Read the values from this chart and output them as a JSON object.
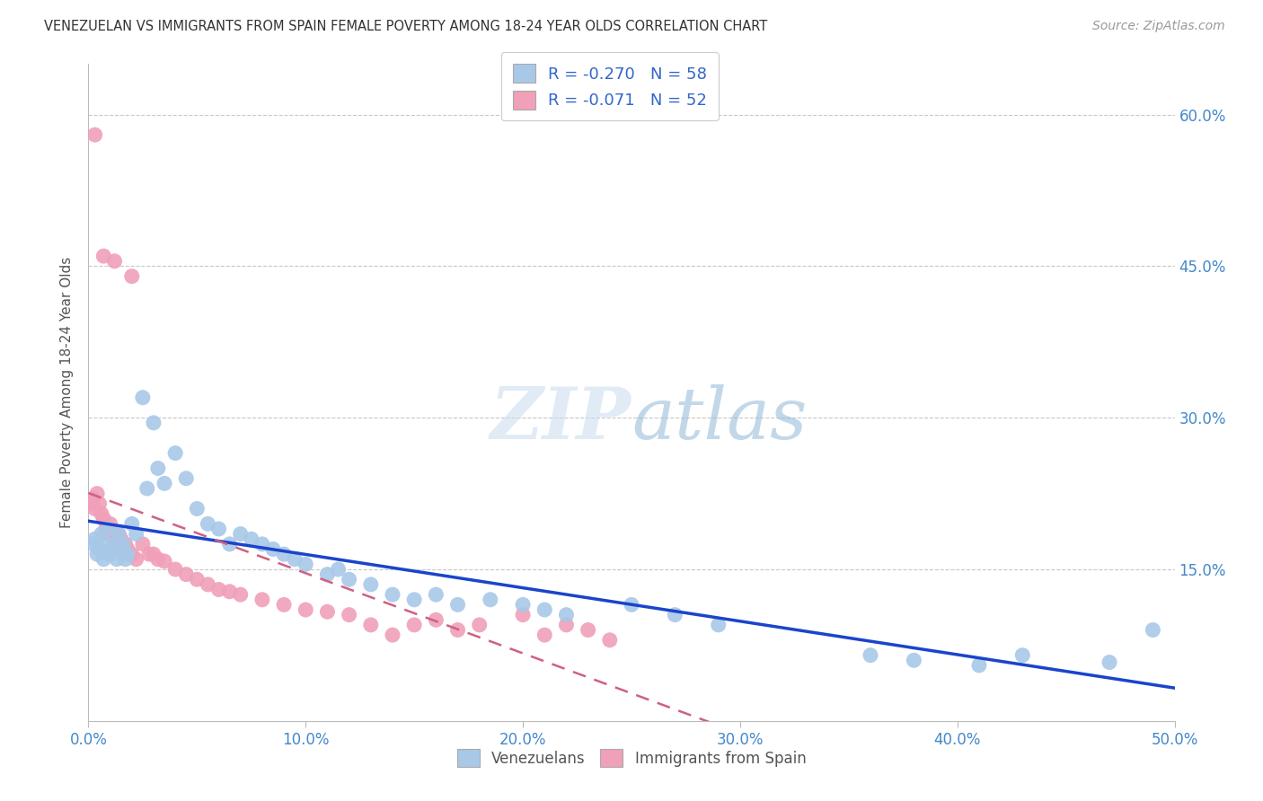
{
  "title": "VENEZUELAN VS IMMIGRANTS FROM SPAIN FEMALE POVERTY AMONG 18-24 YEAR OLDS CORRELATION CHART",
  "source": "Source: ZipAtlas.com",
  "ylabel": "Female Poverty Among 18-24 Year Olds",
  "xlim": [
    0,
    0.5
  ],
  "ylim": [
    0,
    0.65
  ],
  "ytick_positions": [
    0.15,
    0.3,
    0.45,
    0.6
  ],
  "ytick_labels": [
    "15.0%",
    "30.0%",
    "45.0%",
    "60.0%"
  ],
  "xtick_positions": [
    0.0,
    0.1,
    0.2,
    0.3,
    0.4,
    0.5
  ],
  "xtick_labels": [
    "0.0%",
    "10.0%",
    "20.0%",
    "30.0%",
    "40.0%",
    "50.0%"
  ],
  "watermark_zip": "ZIP",
  "watermark_atlas": "atlas",
  "blue_color": "#A8C8E8",
  "pink_color": "#F0A0B8",
  "blue_line_color": "#1A44CC",
  "pink_line_color": "#D06080",
  "legend_text_blue": "R = -0.270   N = 58",
  "legend_text_pink": "R = -0.071   N = 52",
  "venezuelans_x": [
    0.002,
    0.003,
    0.004,
    0.005,
    0.006,
    0.007,
    0.008,
    0.009,
    0.01,
    0.011,
    0.012,
    0.013,
    0.014,
    0.015,
    0.016,
    0.017,
    0.018,
    0.02,
    0.022,
    0.025,
    0.027,
    0.03,
    0.032,
    0.035,
    0.04,
    0.045,
    0.05,
    0.055,
    0.06,
    0.065,
    0.07,
    0.075,
    0.08,
    0.085,
    0.09,
    0.095,
    0.1,
    0.11,
    0.115,
    0.12,
    0.13,
    0.14,
    0.15,
    0.16,
    0.17,
    0.185,
    0.2,
    0.21,
    0.22,
    0.25,
    0.27,
    0.29,
    0.36,
    0.38,
    0.41,
    0.43,
    0.47,
    0.49
  ],
  "venezuelans_y": [
    0.175,
    0.18,
    0.165,
    0.17,
    0.185,
    0.16,
    0.175,
    0.19,
    0.165,
    0.17,
    0.175,
    0.16,
    0.185,
    0.17,
    0.175,
    0.16,
    0.165,
    0.195,
    0.185,
    0.32,
    0.23,
    0.295,
    0.25,
    0.235,
    0.265,
    0.24,
    0.21,
    0.195,
    0.19,
    0.175,
    0.185,
    0.18,
    0.175,
    0.17,
    0.165,
    0.16,
    0.155,
    0.145,
    0.15,
    0.14,
    0.135,
    0.125,
    0.12,
    0.125,
    0.115,
    0.12,
    0.115,
    0.11,
    0.105,
    0.115,
    0.105,
    0.095,
    0.065,
    0.06,
    0.055,
    0.065,
    0.058,
    0.09
  ],
  "spain_x": [
    0.001,
    0.002,
    0.003,
    0.004,
    0.005,
    0.006,
    0.007,
    0.008,
    0.009,
    0.01,
    0.011,
    0.012,
    0.013,
    0.014,
    0.015,
    0.016,
    0.017,
    0.018,
    0.02,
    0.022,
    0.025,
    0.028,
    0.03,
    0.032,
    0.035,
    0.04,
    0.045,
    0.05,
    0.055,
    0.06,
    0.065,
    0.07,
    0.08,
    0.09,
    0.1,
    0.11,
    0.12,
    0.13,
    0.14,
    0.15,
    0.16,
    0.17,
    0.18,
    0.2,
    0.21,
    0.22,
    0.23,
    0.24,
    0.003,
    0.007,
    0.012,
    0.02
  ],
  "spain_y": [
    0.215,
    0.22,
    0.21,
    0.225,
    0.215,
    0.205,
    0.2,
    0.19,
    0.185,
    0.195,
    0.185,
    0.18,
    0.175,
    0.185,
    0.18,
    0.175,
    0.175,
    0.17,
    0.165,
    0.16,
    0.175,
    0.165,
    0.165,
    0.16,
    0.158,
    0.15,
    0.145,
    0.14,
    0.135,
    0.13,
    0.128,
    0.125,
    0.12,
    0.115,
    0.11,
    0.108,
    0.105,
    0.095,
    0.085,
    0.095,
    0.1,
    0.09,
    0.095,
    0.105,
    0.085,
    0.095,
    0.09,
    0.08,
    0.58,
    0.46,
    0.455,
    0.44
  ]
}
